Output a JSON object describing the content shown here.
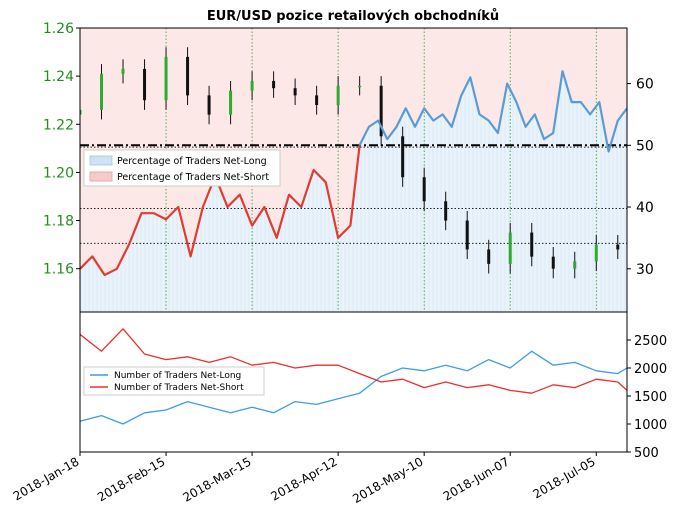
{
  "chart_data": [
    {
      "type": "line",
      "title": "EUR/USD pozice retailových obchodníků",
      "x_tick_labels": [
        "2018-Jan-18",
        "2018-Feb-15",
        "2018-Mar-15",
        "2018-Apr-12",
        "2018-May-10",
        "2018-Jun-07",
        "2018-Jul-05"
      ],
      "x_range": [
        "2018-01-18",
        "2018-07-15"
      ],
      "left_axis": {
        "label": "",
        "ticks": [
          "1.26",
          "1.24",
          "1.22",
          "1.20",
          "1.18",
          "1.16"
        ],
        "ylim": [
          1.142,
          1.26
        ]
      },
      "right_axis": {
        "label": "",
        "ticks": [
          "60",
          "50",
          "40",
          "30"
        ],
        "ylim": [
          23,
          69
        ]
      },
      "horizontal_reference": {
        "value": 50,
        "axis": "right",
        "style": "dash-dot"
      },
      "dotted_levels_left_axis": [
        1.2105,
        1.185,
        1.1705
      ],
      "legend": {
        "placement": "middle-left",
        "entries": [
          "Percentage of Traders Net-Long",
          "Percentage of Traders Net-Short"
        ]
      },
      "series": [
        {
          "name": "EUR/USD",
          "render": "candlestick",
          "axis": "left",
          "x": [
            "2018-01-18",
            "2018-01-25",
            "2018-02-01",
            "2018-02-08",
            "2018-02-15",
            "2018-02-22",
            "2018-03-01",
            "2018-03-08",
            "2018-03-15",
            "2018-03-22",
            "2018-03-29",
            "2018-04-05",
            "2018-04-12",
            "2018-04-19",
            "2018-04-26",
            "2018-05-03",
            "2018-05-10",
            "2018-05-17",
            "2018-05-24",
            "2018-05-31",
            "2018-06-07",
            "2018-06-14",
            "2018-06-21",
            "2018-06-28",
            "2018-07-05",
            "2018-07-12"
          ],
          "values": [
            1.226,
            1.241,
            1.243,
            1.23,
            1.248,
            1.232,
            1.224,
            1.234,
            1.238,
            1.235,
            1.232,
            1.228,
            1.236,
            1.236,
            1.215,
            1.198,
            1.188,
            1.18,
            1.168,
            1.162,
            1.175,
            1.165,
            1.16,
            1.163,
            1.17,
            1.168
          ]
        },
        {
          "name": "Percentage of Traders Net-Long",
          "axis": "right",
          "color": "#5b9bd5",
          "x": [
            "2018-04-19",
            "2018-04-22",
            "2018-04-25",
            "2018-04-28",
            "2018-05-01",
            "2018-05-04",
            "2018-05-07",
            "2018-05-10",
            "2018-05-13",
            "2018-05-16",
            "2018-05-19",
            "2018-05-22",
            "2018-05-25",
            "2018-05-28",
            "2018-05-31",
            "2018-06-03",
            "2018-06-06",
            "2018-06-09",
            "2018-06-12",
            "2018-06-15",
            "2018-06-18",
            "2018-06-21",
            "2018-06-24",
            "2018-06-27",
            "2018-06-30",
            "2018-07-03",
            "2018-07-06",
            "2018-07-09",
            "2018-07-12",
            "2018-07-15"
          ],
          "values": [
            50,
            53,
            54,
            51,
            53,
            56,
            53,
            56,
            54,
            55,
            53,
            58,
            61,
            55,
            54,
            52,
            60,
            57,
            53,
            55,
            51,
            52,
            62,
            57,
            57,
            55,
            57,
            49,
            54,
            56
          ]
        },
        {
          "name": "Percentage of Traders Net-Short",
          "axis": "right",
          "color": "#e03c31",
          "x": [
            "2018-01-18",
            "2018-01-22",
            "2018-01-26",
            "2018-01-30",
            "2018-02-03",
            "2018-02-07",
            "2018-02-11",
            "2018-02-15",
            "2018-02-19",
            "2018-02-23",
            "2018-02-27",
            "2018-03-03",
            "2018-03-07",
            "2018-03-11",
            "2018-03-15",
            "2018-03-19",
            "2018-03-23",
            "2018-03-27",
            "2018-03-31",
            "2018-04-04",
            "2018-04-08",
            "2018-04-12",
            "2018-04-16",
            "2018-04-19"
          ],
          "values": [
            30,
            32,
            29,
            30,
            34,
            39,
            39,
            38,
            40,
            32,
            40,
            45,
            40,
            42,
            37,
            40,
            35,
            42,
            40,
            46,
            44,
            35,
            37,
            50
          ]
        }
      ]
    },
    {
      "type": "line",
      "y_ticks": [
        "2500",
        "2000",
        "1500",
        "1000",
        "500"
      ],
      "ylim": [
        500,
        3000
      ],
      "legend": {
        "placement": "middle-left",
        "entries": [
          "Number of Traders Net-Long",
          "Number of Traders Net-Short"
        ]
      },
      "series": [
        {
          "name": "Number of Traders Net-Long",
          "color": "#3c9ee6",
          "x": [
            "2018-01-18",
            "2018-01-25",
            "2018-02-01",
            "2018-02-08",
            "2018-02-15",
            "2018-02-22",
            "2018-03-01",
            "2018-03-08",
            "2018-03-15",
            "2018-03-22",
            "2018-03-29",
            "2018-04-05",
            "2018-04-12",
            "2018-04-19",
            "2018-04-26",
            "2018-05-03",
            "2018-05-10",
            "2018-05-17",
            "2018-05-24",
            "2018-05-31",
            "2018-06-07",
            "2018-06-14",
            "2018-06-21",
            "2018-06-28",
            "2018-07-05",
            "2018-07-12",
            "2018-07-15"
          ],
          "values": [
            1050,
            1150,
            1000,
            1200,
            1250,
            1400,
            1300,
            1200,
            1300,
            1200,
            1400,
            1350,
            1450,
            1550,
            1850,
            2000,
            1950,
            2050,
            1950,
            2150,
            2000,
            2300,
            2050,
            2100,
            1950,
            1900,
            2000
          ]
        },
        {
          "name": "Number of Traders Net-Short",
          "color": "#e8302c",
          "x": [
            "2018-01-18",
            "2018-01-25",
            "2018-02-01",
            "2018-02-08",
            "2018-02-15",
            "2018-02-22",
            "2018-03-01",
            "2018-03-08",
            "2018-03-15",
            "2018-03-22",
            "2018-03-29",
            "2018-04-05",
            "2018-04-12",
            "2018-04-19",
            "2018-04-26",
            "2018-05-03",
            "2018-05-10",
            "2018-05-17",
            "2018-05-24",
            "2018-05-31",
            "2018-06-07",
            "2018-06-14",
            "2018-06-21",
            "2018-06-28",
            "2018-07-05",
            "2018-07-12",
            "2018-07-15"
          ],
          "values": [
            2600,
            2300,
            2700,
            2250,
            2150,
            2200,
            2100,
            2200,
            2050,
            2100,
            2000,
            2050,
            2050,
            1900,
            1750,
            1800,
            1650,
            1750,
            1650,
            1700,
            1600,
            1550,
            1700,
            1650,
            1800,
            1750,
            1600
          ]
        }
      ]
    }
  ]
}
